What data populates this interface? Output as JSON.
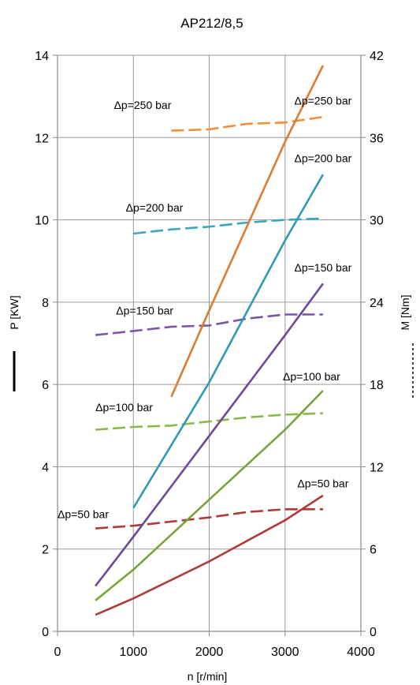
{
  "chart_data": {
    "type": "line",
    "title": "AP212/8,5",
    "xlabel": "n [r/min]",
    "ylabel_left": "P [KW]",
    "ylabel_right": "M [Nm]",
    "xlim": [
      0,
      4000
    ],
    "ylim_left": [
      0,
      14
    ],
    "ylim_right": [
      0,
      42
    ],
    "x_ticks": [
      "0",
      "1000",
      "2000",
      "3000",
      "4000"
    ],
    "y_left_ticks": [
      "0",
      "2",
      "4",
      "6",
      "8",
      "10",
      "12",
      "14"
    ],
    "y_right_ticks": [
      "0",
      "6",
      "12",
      "18",
      "24",
      "30",
      "36",
      "42"
    ],
    "grid": true,
    "power_series": [
      {
        "name": "Δp=50 bar",
        "color": "#b03a3a",
        "x": [
          500,
          1000,
          2000,
          3000,
          3500
        ],
        "y": [
          0.4,
          0.8,
          1.7,
          2.7,
          3.3
        ]
      },
      {
        "name": "Δp=100 bar",
        "color": "#77a33a",
        "x": [
          500,
          1000,
          2000,
          3000,
          3500
        ],
        "y": [
          0.75,
          1.5,
          3.2,
          4.9,
          5.85
        ]
      },
      {
        "name": "Δp=150 bar",
        "color": "#6a4a97",
        "x": [
          500,
          1000,
          2000,
          3000,
          3500
        ],
        "y": [
          1.1,
          2.3,
          4.75,
          7.2,
          8.45
        ]
      },
      {
        "name": "Δp=200 bar",
        "color": "#2e9ab5",
        "x": [
          1000,
          2000,
          3000,
          3500
        ],
        "y": [
          3.0,
          6.05,
          9.5,
          11.1
        ]
      },
      {
        "name": "Δp=250 bar",
        "color": "#e07b2e",
        "x": [
          1500,
          2000,
          3000,
          3500
        ],
        "y": [
          5.7,
          7.8,
          11.9,
          13.75
        ]
      }
    ],
    "torque_series": [
      {
        "name": "Δp=50 bar",
        "color": "#b03a3a",
        "x": [
          500,
          1000,
          2000,
          2500,
          3000,
          3500
        ],
        "y": [
          7.5,
          7.7,
          8.3,
          8.7,
          8.9,
          8.9
        ]
      },
      {
        "name": "Δp=100 bar",
        "color": "#8ab84a",
        "x": [
          500,
          1000,
          1500,
          2000,
          2500,
          3000,
          3500
        ],
        "y": [
          14.7,
          14.9,
          15.0,
          15.3,
          15.6,
          15.8,
          15.9
        ]
      },
      {
        "name": "Δp=150 bar",
        "color": "#7a55a8",
        "x": [
          500,
          1000,
          1500,
          2000,
          2500,
          3000,
          3500
        ],
        "y": [
          21.6,
          21.9,
          22.2,
          22.3,
          22.8,
          23.1,
          23.1
        ]
      },
      {
        "name": "Δp=200 bar",
        "color": "#3aa6c0",
        "x": [
          1000,
          1500,
          2000,
          2500,
          3000,
          3500
        ],
        "y": [
          29.0,
          29.3,
          29.5,
          29.8,
          30.0,
          30.1
        ]
      },
      {
        "name": "Δp=250 bar",
        "color": "#f0913a",
        "x": [
          1500,
          2000,
          2500,
          3000,
          3500
        ],
        "y": [
          36.5,
          36.6,
          37.0,
          37.1,
          37.5
        ]
      }
    ],
    "annotations": [
      {
        "text": "Δp=250 bar",
        "x": 1500,
        "y": 12.7,
        "anchor": "end"
      },
      {
        "text": "Δp=250 bar",
        "x": 3500,
        "y": 12.8,
        "anchor": "middle"
      },
      {
        "text": "Δp=200 bar",
        "x": 900,
        "y": 10.2,
        "anchor": "start"
      },
      {
        "text": "Δp=200 bar",
        "x": 3500,
        "y": 11.4,
        "anchor": "middle"
      },
      {
        "text": "Δp=150 bar",
        "x": 1150,
        "y": 7.7,
        "anchor": "middle"
      },
      {
        "text": "Δp=150 bar",
        "x": 3500,
        "y": 8.75,
        "anchor": "middle"
      },
      {
        "text": "Δp=100 bar",
        "x": 500,
        "y": 5.35,
        "anchor": "start"
      },
      {
        "text": "Δp=100 bar",
        "x": 3350,
        "y": 6.1,
        "anchor": "middle"
      },
      {
        "text": "Δp=50 bar",
        "x": 0,
        "y": 2.75,
        "anchor": "start"
      },
      {
        "text": "Δp=50 bar",
        "x": 3500,
        "y": 3.5,
        "anchor": "middle"
      }
    ]
  }
}
